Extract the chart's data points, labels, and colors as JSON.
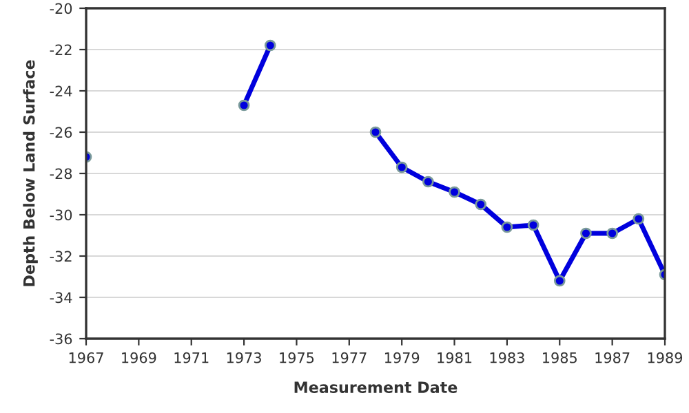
{
  "chart_data": {
    "type": "line",
    "xlabel": "Measurement Date",
    "ylabel": "Depth Below Land Surface",
    "x": [
      1967,
      1970,
      1973,
      1974,
      1976,
      1978,
      1979,
      1980,
      1981,
      1982,
      1983,
      1984,
      1985,
      1986,
      1987,
      1988,
      1989
    ],
    "series": [
      {
        "color": "#0000dd",
        "values": [
          -27.2,
          null,
          -24.7,
          -21.8,
          null,
          -26.0,
          -27.7,
          -28.4,
          -28.9,
          -29.5,
          -30.6,
          -30.5,
          -33.2,
          -30.9,
          -30.9,
          -30.2,
          -32.9
        ]
      }
    ],
    "xlim": [
      1967,
      1989
    ],
    "xticks": [
      1967,
      1969,
      1971,
      1973,
      1975,
      1977,
      1979,
      1981,
      1983,
      1985,
      1987,
      1989
    ],
    "ylim": [
      -36,
      -20
    ],
    "yticks": [
      -36,
      -34,
      -32,
      -30,
      -28,
      -26,
      -24,
      -22,
      -20
    ],
    "grid": "y",
    "marker": "circle",
    "line_style": "solid"
  }
}
